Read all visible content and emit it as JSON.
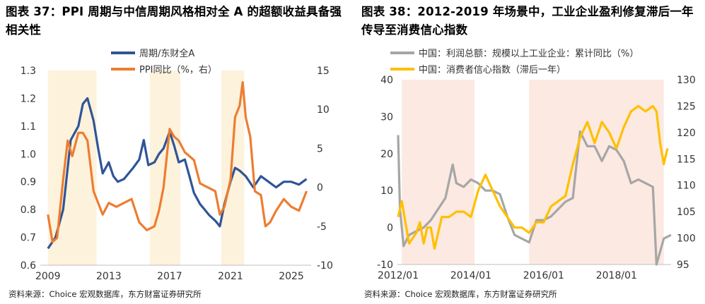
{
  "left": {
    "title": "图表 37：PPI 周期与中信周期风格相对全 A 的超额收益具备强相关性",
    "source": "资料来源：Choice 宏观数据库，东方财富证券研究所"
  },
  "right": {
    "title": "图表 38：2012-2019 年场景中，工业企业盈利修复滞后一年传导至消费信心指数",
    "source": "资料来源：Choice 宏观数据库，东方财富证券研究所"
  },
  "chart_data": [
    {
      "type": "line",
      "id": "left",
      "series": [
        {
          "name": "周期/东财全A",
          "axis": "left",
          "color": "#2f5597",
          "x": [
            2009.0,
            2009.5,
            2010.0,
            2010.5,
            2011.0,
            2011.3,
            2011.6,
            2012.0,
            2012.3,
            2012.6,
            2013.0,
            2013.3,
            2013.6,
            2014.0,
            2014.3,
            2014.6,
            2015.0,
            2015.3,
            2015.6,
            2016.0,
            2016.3,
            2016.6,
            2017.0,
            2017.3,
            2017.6,
            2018.0,
            2018.3,
            2018.6,
            2019.0,
            2019.3,
            2019.6,
            2020.0,
            2020.3,
            2020.6,
            2021.0,
            2021.3,
            2021.6,
            2022.0,
            2022.5,
            2023.0,
            2023.5,
            2024.0,
            2024.5,
            2025.0,
            2025.5,
            2026.0
          ],
          "values": [
            0.66,
            0.7,
            0.8,
            1.05,
            1.1,
            1.18,
            1.2,
            1.12,
            1.02,
            0.93,
            0.97,
            0.92,
            0.9,
            0.91,
            0.93,
            0.95,
            0.98,
            1.05,
            0.96,
            0.97,
            1.0,
            1.02,
            1.08,
            1.03,
            0.97,
            0.98,
            0.92,
            0.86,
            0.82,
            0.8,
            0.78,
            0.76,
            0.74,
            0.82,
            0.9,
            0.95,
            0.94,
            0.92,
            0.88,
            0.92,
            0.9,
            0.88,
            0.9,
            0.9,
            0.89,
            0.91
          ]
        },
        {
          "name": "PPI同比（%，右）",
          "axis": "right",
          "color": "#ed7d31",
          "x": [
            2009.0,
            2009.3,
            2009.6,
            2010.0,
            2010.3,
            2010.6,
            2011.0,
            2011.3,
            2011.6,
            2012.0,
            2012.3,
            2012.6,
            2013.0,
            2013.5,
            2014.0,
            2014.5,
            2015.0,
            2015.5,
            2016.0,
            2016.3,
            2016.6,
            2017.0,
            2017.3,
            2017.6,
            2018.0,
            2018.3,
            2018.6,
            2019.0,
            2019.5,
            2020.0,
            2020.3,
            2020.6,
            2021.0,
            2021.3,
            2021.6,
            2021.8,
            2022.0,
            2022.3,
            2022.6,
            2023.0,
            2023.3,
            2023.6,
            2024.0,
            2024.5,
            2025.0,
            2025.5,
            2026.0
          ],
          "values": [
            -3.5,
            -7.0,
            -6.5,
            1.0,
            6.0,
            4.0,
            7.0,
            7.0,
            6.0,
            -0.5,
            -2.0,
            -3.5,
            -2.0,
            -2.5,
            -2.0,
            -1.5,
            -4.5,
            -5.5,
            -5.0,
            -3.0,
            0.0,
            7.5,
            6.5,
            6.0,
            4.5,
            4.0,
            3.5,
            0.5,
            0.0,
            -0.5,
            -3.5,
            -2.5,
            1.0,
            9.0,
            10.5,
            13.5,
            9.0,
            6.5,
            -0.5,
            -1.0,
            -5.0,
            -4.5,
            -3.0,
            -1.5,
            -2.5,
            -3.0,
            -0.5
          ]
        }
      ],
      "xlim": [
        2008.5,
        2026.3
      ],
      "x_ticks": [
        2009,
        2013,
        2017,
        2021,
        2025
      ],
      "ylim_left": [
        0.6,
        1.3
      ],
      "y_ticks_left": [
        "0.6",
        "0.7",
        "0.8",
        "0.9",
        "1.0",
        "1.1",
        "1.2",
        "1.3"
      ],
      "ylim_right": [
        -10,
        15
      ],
      "y_ticks_right": [
        "-10",
        "-5",
        "0",
        "5",
        "10",
        "15"
      ],
      "shaded": [
        [
          2009.0,
          2012.2
        ],
        [
          2015.7,
          2017.7
        ],
        [
          2020.4,
          2021.9
        ]
      ],
      "shade_color": "#fdf2dc",
      "legend": "top-left",
      "grid": false
    },
    {
      "type": "line",
      "id": "right",
      "series": [
        {
          "name": "中国：利润总额：规模以上工业企业：累计同比（%）",
          "axis": "left",
          "color": "#a6a6a6",
          "x": [
            2012.0,
            2012.05,
            2012.15,
            2012.3,
            2012.5,
            2012.7,
            2012.9,
            2013.1,
            2013.3,
            2013.5,
            2013.6,
            2013.8,
            2014.0,
            2014.2,
            2014.4,
            2014.6,
            2014.8,
            2015.0,
            2015.2,
            2015.4,
            2015.6,
            2015.8,
            2016.0,
            2016.2,
            2016.4,
            2016.6,
            2016.8,
            2017.0,
            2017.2,
            2017.4,
            2017.6,
            2017.8,
            2018.0,
            2018.2,
            2018.4,
            2018.6,
            2018.8,
            2019.0,
            2019.1,
            2019.3,
            2019.5
          ],
          "values": [
            25,
            5,
            -5,
            -2,
            -1,
            0,
            2,
            5,
            8,
            17,
            12,
            11,
            13,
            12,
            10,
            10,
            9,
            3,
            -2,
            -3,
            -4,
            2,
            2,
            3,
            5,
            7,
            8,
            26,
            22,
            22,
            18,
            22,
            21,
            18,
            12,
            13,
            12,
            11,
            -10,
            -3,
            -2
          ]
        },
        {
          "name": "中国：消费者信心指数（滞后一年）",
          "axis": "right",
          "color": "#ffc000",
          "x": [
            2012.0,
            2012.1,
            2012.2,
            2012.3,
            2012.4,
            2012.5,
            2012.6,
            2012.7,
            2012.8,
            2012.9,
            2013.0,
            2013.2,
            2013.4,
            2013.6,
            2013.8,
            2014.0,
            2014.2,
            2014.4,
            2014.6,
            2014.8,
            2015.0,
            2015.2,
            2015.4,
            2015.6,
            2015.8,
            2016.0,
            2016.2,
            2016.4,
            2016.6,
            2016.8,
            2017.0,
            2017.2,
            2017.4,
            2017.6,
            2017.8,
            2018.0,
            2018.2,
            2018.4,
            2018.6,
            2018.8,
            2019.0,
            2019.1,
            2019.2,
            2019.3,
            2019.4
          ],
          "values": [
            104,
            107,
            103,
            99,
            100,
            101,
            103,
            99,
            102,
            102,
            98,
            104,
            104,
            105,
            105,
            104,
            109,
            112,
            109,
            106,
            104,
            102,
            102,
            101,
            103,
            103,
            106,
            107,
            108,
            114,
            119,
            122,
            118,
            122,
            120,
            117,
            121,
            124,
            125,
            124,
            125,
            124,
            118,
            114,
            117
          ]
        }
      ],
      "x_ticks": [
        "2012/01",
        "2014/01",
        "2016/01",
        "2018/01"
      ],
      "xlim": [
        2011.98,
        2019.5
      ],
      "ylim_left": [
        -10,
        40
      ],
      "y_ticks_left": [
        "-10",
        "0",
        "10",
        "20",
        "30",
        "40"
      ],
      "ylim_right": [
        95,
        130
      ],
      "y_ticks_right": [
        "95",
        "100",
        "105",
        "110",
        "115",
        "120",
        "125",
        "130"
      ],
      "shaded": [
        [
          2012.1,
          2014.1
        ],
        [
          2015.6,
          2019.3
        ]
      ],
      "shade_color": "#fbe9e2",
      "legend": "top-left",
      "grid": false
    }
  ]
}
